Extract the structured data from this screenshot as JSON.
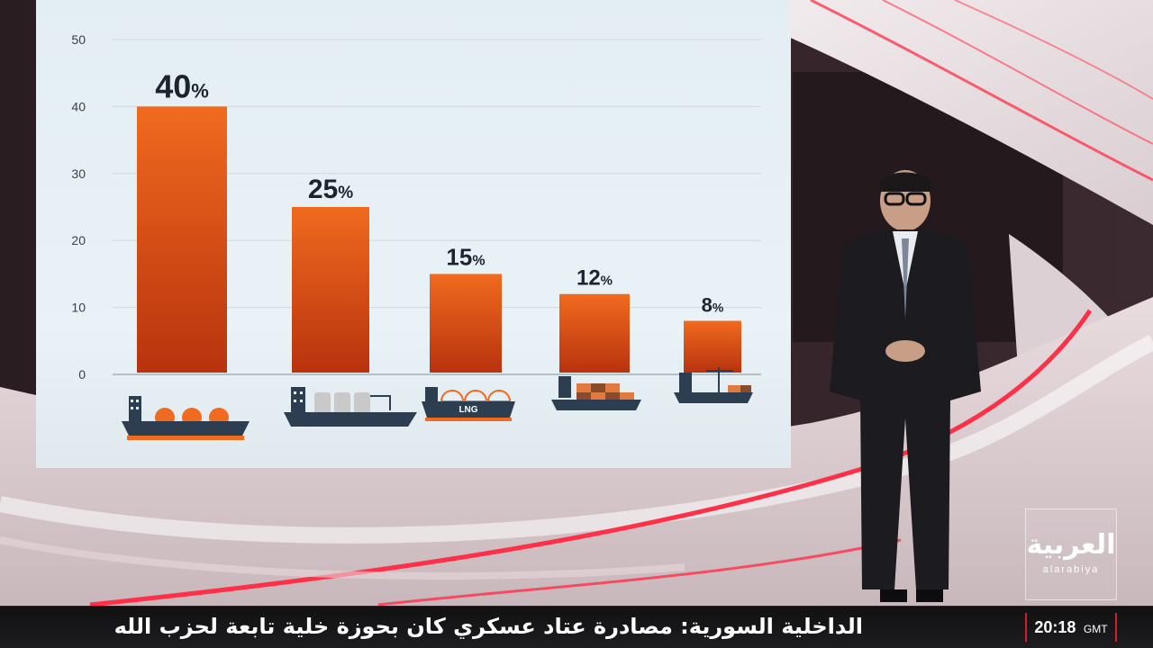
{
  "chart_data": {
    "type": "bar",
    "categories": [
      "crude-oil-tanker",
      "chemical-tanker",
      "LNG",
      "container-ship",
      "cargo-ship"
    ],
    "values": [
      40,
      25,
      15,
      12,
      8
    ],
    "value_labels": [
      "40",
      "25",
      "15",
      "12",
      "8"
    ],
    "value_suffix": "%",
    "y_ticks": [
      "0",
      "10",
      "20",
      "30",
      "40",
      "50"
    ],
    "ylim": [
      0,
      50
    ],
    "grid": true,
    "title": "",
    "xlabel": "",
    "ylabel": "",
    "bar_color_top": "#f06a1f",
    "bar_color_bottom": "#b8330e",
    "ship_icons": [
      "oil-tanker-icon",
      "chemical-tanker-icon",
      "lng-carrier-icon",
      "container-ship-icon",
      "cargo-ship-icon"
    ],
    "lng_hull_label": "LNG"
  },
  "ticker": {
    "headline": "الداخلية السورية: مصادرة عتاد عسكري كان بحوزة خلية تابعة لحزب الله",
    "time": "20:18",
    "timezone": "GMT"
  },
  "logo": {
    "arabic": "العربية",
    "latin": "alarabiya"
  },
  "colors": {
    "accent_red": "#d41e2d",
    "screen_bg": "#e6f0f4",
    "ticker_bg": "#151517"
  }
}
